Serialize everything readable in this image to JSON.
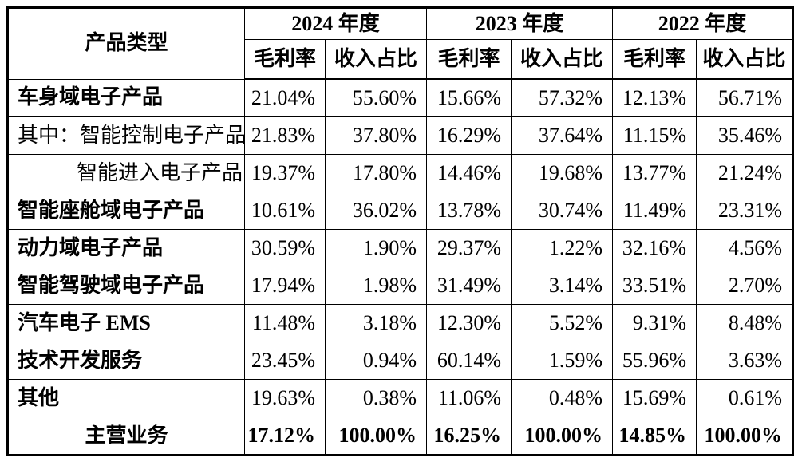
{
  "page": {
    "background": "#ffffff",
    "border_color": "#000000",
    "text_color": "#000000"
  },
  "table": {
    "product_type_header": "产品类型",
    "year_headers": [
      "2024 年度",
      "2023 年度",
      "2022 年度"
    ],
    "metric_headers": [
      "毛利率",
      "收入占比"
    ],
    "rows": [
      {
        "label": "车身域电子产品",
        "style": "bold",
        "values": [
          "21.04%",
          "55.60%",
          "15.66%",
          "57.32%",
          "12.13%",
          "56.71%"
        ]
      },
      {
        "label": "其中：智能控制电子产品",
        "style": "regular",
        "values": [
          "21.83%",
          "37.80%",
          "16.29%",
          "37.64%",
          "11.15%",
          "35.46%"
        ]
      },
      {
        "label": "智能进入电子产品",
        "style": "indent",
        "values": [
          "19.37%",
          "17.80%",
          "14.46%",
          "19.68%",
          "13.77%",
          "21.24%"
        ]
      },
      {
        "label": "智能座舱域电子产品",
        "style": "bold",
        "values": [
          "10.61%",
          "36.02%",
          "13.78%",
          "30.74%",
          "11.49%",
          "23.31%"
        ]
      },
      {
        "label": "动力域电子产品",
        "style": "bold",
        "values": [
          "30.59%",
          "1.90%",
          "29.37%",
          "1.22%",
          "32.16%",
          "4.56%"
        ]
      },
      {
        "label": "智能驾驶域电子产品",
        "style": "bold",
        "values": [
          "17.94%",
          "1.98%",
          "31.49%",
          "3.14%",
          "33.51%",
          "2.70%"
        ]
      },
      {
        "label": "汽车电子 EMS",
        "style": "bold",
        "values": [
          "11.48%",
          "3.18%",
          "12.30%",
          "5.52%",
          "9.31%",
          "8.48%"
        ]
      },
      {
        "label": "技术开发服务",
        "style": "bold",
        "values": [
          "23.45%",
          "0.94%",
          "60.14%",
          "1.59%",
          "55.96%",
          "3.63%"
        ]
      },
      {
        "label": "其他",
        "style": "bold",
        "values": [
          "19.63%",
          "0.38%",
          "11.06%",
          "0.48%",
          "15.69%",
          "0.61%"
        ]
      },
      {
        "label": "主营业务",
        "style": "total",
        "values": [
          "17.12%",
          "100.00%",
          "16.25%",
          "100.00%",
          "14.85%",
          "100.00%"
        ]
      }
    ]
  }
}
